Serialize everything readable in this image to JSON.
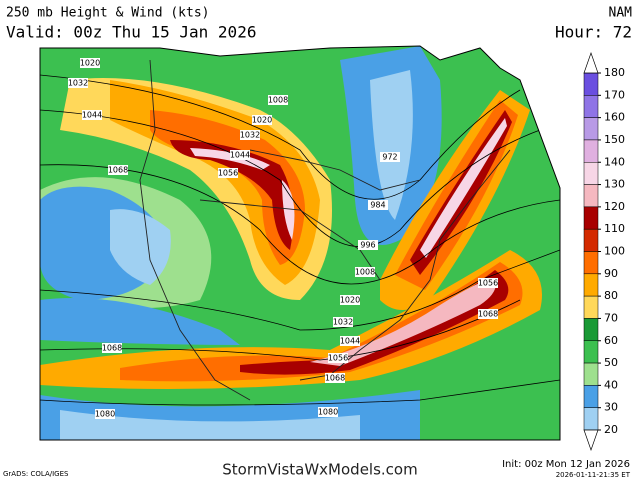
{
  "header": {
    "title": "250 mb Height & Wind (kts)",
    "model": "NAM",
    "valid": "Valid: 00z Thu 15 Jan 2026",
    "hour": "Hour: 72"
  },
  "colorbar": {
    "ticks": [
      180,
      170,
      160,
      150,
      140,
      130,
      120,
      110,
      100,
      90,
      80,
      70,
      60,
      50,
      40,
      30,
      20
    ],
    "colors": [
      "#6a4fe0",
      "#8f74e6",
      "#b89ae6",
      "#e0b0e0",
      "#f7d6e6",
      "#f5b8c0",
      "#a80000",
      "#d42a00",
      "#ff6e00",
      "#ffaa00",
      "#ffd85a",
      "#1a9a36",
      "#3cc050",
      "#9ee08e",
      "#4aa0e6",
      "#9fd0f2"
    ]
  },
  "contour_labels": [
    "1020",
    "1032",
    "1044",
    "1068",
    "1008",
    "1020",
    "1032",
    "1044",
    "1056",
    "972",
    "984",
    "996",
    "1008",
    "1020",
    "1032",
    "1044",
    "1056",
    "1068",
    "1056",
    "1068",
    "1068",
    "1080",
    "1080"
  ],
  "footer": {
    "credit": "GrADS: COLA/IGES",
    "site": "StormVistaWxModels.com",
    "init": "Init: 00z Mon 12 Jan 2026",
    "timestamp": "2026-01-11-21:35 ET"
  }
}
